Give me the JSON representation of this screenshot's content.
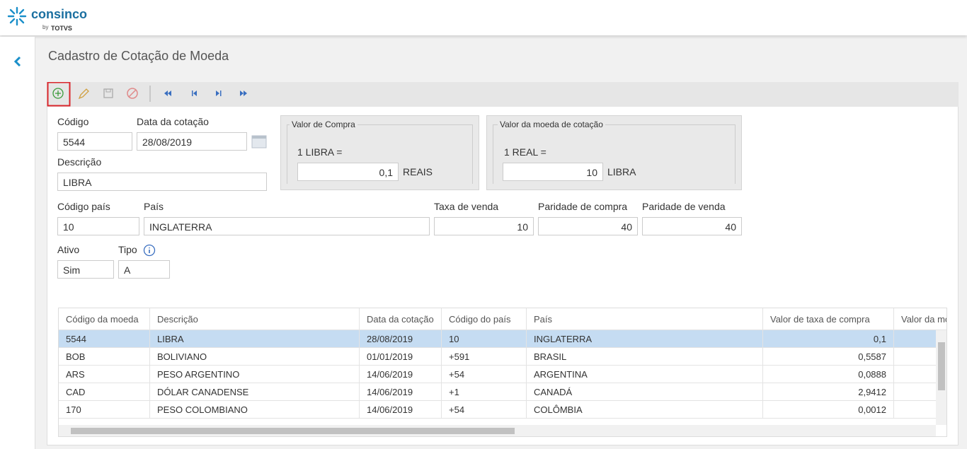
{
  "header": {
    "brand": "consinco",
    "by": "by",
    "partner": "TOTVS"
  },
  "page": {
    "title": "Cadastro de Cotação de Moeda"
  },
  "form": {
    "codigo": {
      "label": "Código",
      "value": "5544"
    },
    "data_cotacao": {
      "label": "Data da cotação",
      "value": "28/08/2019"
    },
    "descricao": {
      "label": "Descrição",
      "value": "LIBRA"
    },
    "valor_compra": {
      "legend": "Valor de Compra",
      "prefix": "1 LIBRA =",
      "value": "0,1",
      "unit": "REAIS"
    },
    "valor_moeda": {
      "legend": "Valor da moeda de cotação",
      "prefix": "1 REAL =",
      "value": "10",
      "unit": "LIBRA"
    },
    "codigo_pais": {
      "label": "Código país",
      "value": "10"
    },
    "pais": {
      "label": "País",
      "value": "INGLATERRA"
    },
    "taxa_venda": {
      "label": "Taxa de venda",
      "value": "10"
    },
    "paridade_compra": {
      "label": "Paridade de compra",
      "value": "40"
    },
    "paridade_venda": {
      "label": "Paridade de venda",
      "value": "40"
    },
    "ativo": {
      "label": "Ativo",
      "value": "Sim"
    },
    "tipo": {
      "label": "Tipo",
      "value": "A"
    }
  },
  "table": {
    "columns": [
      "Código da moeda",
      "Descrição",
      "Data da cotação",
      "Código do país",
      "País",
      "Valor de taxa de compra",
      "Valor da mo"
    ],
    "rows": [
      [
        "5544",
        "LIBRA",
        "28/08/2019",
        "10",
        "INGLATERRA",
        "0,1"
      ],
      [
        "BOB",
        "BOLIVIANO",
        "01/01/2019",
        "+591",
        "BRASIL",
        "0,5587"
      ],
      [
        "ARS",
        "PESO ARGENTINO",
        "14/06/2019",
        "+54",
        "ARGENTINA",
        "0,0888"
      ],
      [
        "CAD",
        "DÓLAR CANADENSE",
        "14/06/2019",
        "+1",
        "CANADÁ",
        "2,9412"
      ],
      [
        "170",
        "PESO COLOMBIANO",
        "14/06/2019",
        "+54",
        "COLÔMBIA",
        "0,0012"
      ]
    ]
  }
}
